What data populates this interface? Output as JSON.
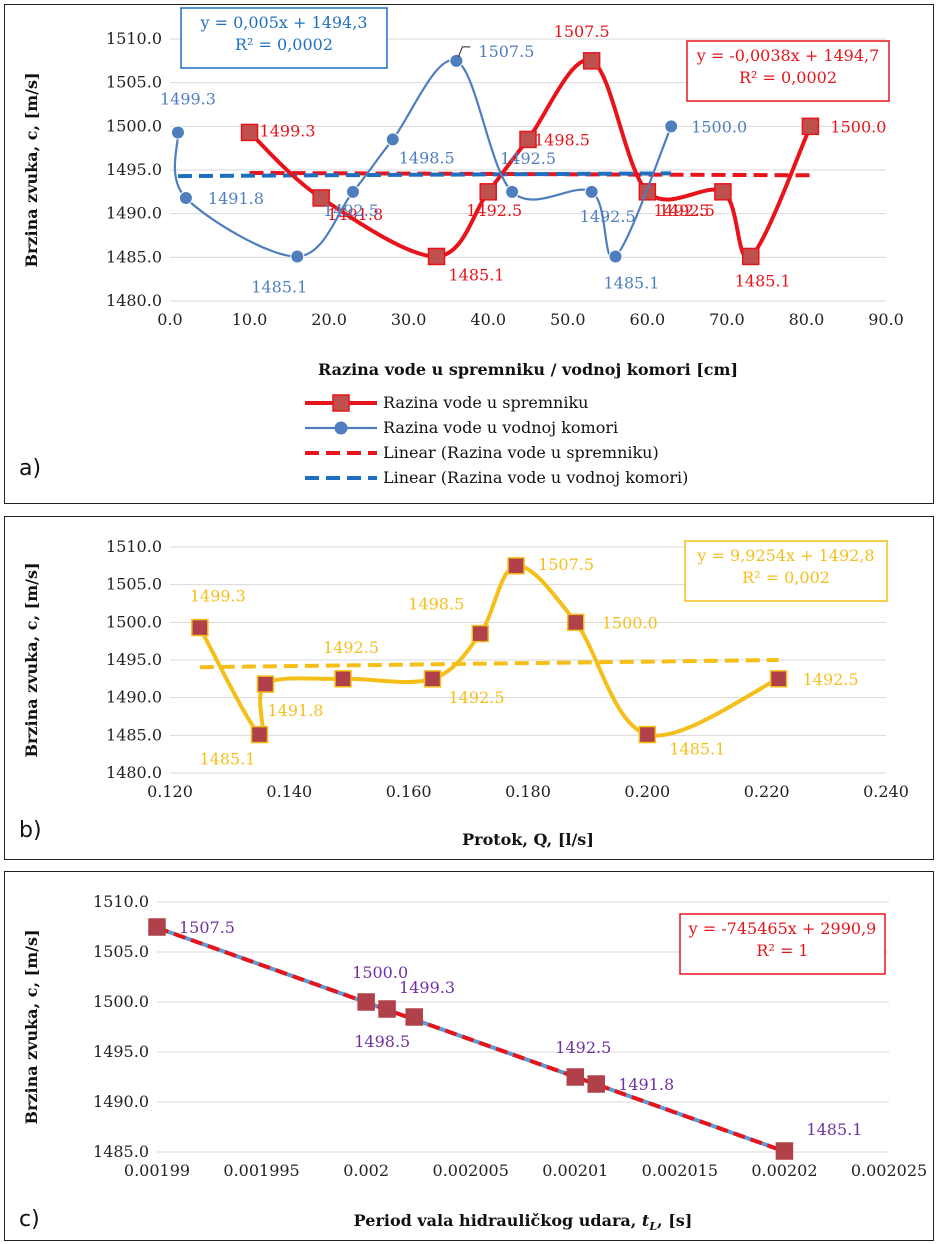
{
  "chart_data": [
    {
      "id": "a",
      "type": "line",
      "panel_label": "a)",
      "xlabel": "Razina vode u spremniku / vodnoj komori [cm]",
      "ylabel": "Brzina zvuka, c, [m/s]",
      "xlim": [
        0,
        90
      ],
      "ylim": [
        1480,
        1510
      ],
      "x_ticks": [
        "0.0",
        "10.0",
        "20.0",
        "30.0",
        "40.0",
        "50.0",
        "60.0",
        "70.0",
        "80.0",
        "90.0"
      ],
      "y_ticks": [
        "1480.0",
        "1485.0",
        "1490.0",
        "1495.0",
        "1500.0",
        "1505.0",
        "1510.0"
      ],
      "grid": true,
      "legend": "bottom",
      "legend_entries": [
        "Razina vode u spremniku",
        "Razina vode u vodnoj komori",
        "Linear (Razina vode u spremniku)",
        "Linear (Razina vode u vodnoj komori)"
      ],
      "series": [
        {
          "name": "Razina vode u spremniku",
          "color": "#e8141b",
          "marker": "square",
          "x": [
            10,
            19,
            33.5,
            40,
            45,
            53,
            60,
            69.5,
            73,
            80.5
          ],
          "y": [
            1499.3,
            1491.8,
            1485.1,
            1492.5,
            1498.5,
            1507.5,
            1492.5,
            1492.5,
            1485.1,
            1500.0
          ],
          "labels": [
            "1499.3",
            "1491.8",
            "1485.1",
            "1492.5",
            "1498.5",
            "1507.5",
            "1492.5",
            "1492.5",
            "1485.1",
            "1500.0"
          ]
        },
        {
          "name": "Razina vode u vodnoj komori",
          "color": "#4f7ebf",
          "marker": "circle",
          "x": [
            1,
            2,
            16,
            23,
            28,
            36,
            43,
            53,
            56,
            63
          ],
          "y": [
            1499.3,
            1491.8,
            1485.1,
            1492.5,
            1498.5,
            1507.5,
            1492.5,
            1492.5,
            1485.1,
            1500.0
          ],
          "labels": [
            "1499.3",
            "1491.8",
            "1485.1",
            "1492.5",
            "1498.5",
            "1507.5",
            "1492.5",
            "1492.5",
            "1485.1",
            "1500.0"
          ]
        }
      ],
      "trendlines": [
        {
          "name": "Linear (Razina vode u spremniku)",
          "color": "#e8141b",
          "equation": "y = -0,0038x + 1494,7",
          "r2": "R² = 0,0002",
          "slope": -0.0038,
          "intercept": 1494.7,
          "x_range": [
            10,
            80.5
          ]
        },
        {
          "name": "Linear (Razina vode u vodnoj komori)",
          "color": "#1f6fc0",
          "equation": "y = 0,005x + 1494,3",
          "r2": "R² = 0,0002",
          "slope": 0.005,
          "intercept": 1494.3,
          "x_range": [
            1,
            63
          ]
        }
      ]
    },
    {
      "id": "b",
      "type": "line",
      "panel_label": "b)",
      "xlabel": "Protok, Q, [l/s]",
      "ylabel": "Brzina zvuka, c, [m/s]",
      "xlim": [
        0.12,
        0.24
      ],
      "ylim": [
        1480,
        1510
      ],
      "x_ticks": [
        "0.120",
        "0.140",
        "0.160",
        "0.180",
        "0.200",
        "0.220",
        "0.240"
      ],
      "y_ticks": [
        "1480.0",
        "1485.0",
        "1490.0",
        "1495.0",
        "1500.0",
        "1505.0",
        "1510.0"
      ],
      "grid": true,
      "series": [
        {
          "name": "",
          "color": "#f5bf1a",
          "marker_color": "#b0414a",
          "marker": "square",
          "x": [
            0.125,
            0.135,
            0.136,
            0.149,
            0.164,
            0.172,
            0.178,
            0.188,
            0.2,
            0.222
          ],
          "y": [
            1499.3,
            1485.1,
            1491.8,
            1492.5,
            1492.5,
            1498.5,
            1507.5,
            1500.0,
            1485.1,
            1492.5
          ],
          "labels": [
            "1499.3",
            "1485.1",
            "1491.8",
            "1492.5",
            "1492.5",
            "1498.5",
            "1507.5",
            "1500.0",
            "1485.1",
            "1492.5"
          ]
        }
      ],
      "trendlines": [
        {
          "color": "#f5bf1a",
          "equation": "y = 9,9254x + 1492,8",
          "r2": "R² = 0,002",
          "slope": 9.9254,
          "intercept": 1492.8,
          "x_range": [
            0.125,
            0.222
          ]
        }
      ]
    },
    {
      "id": "c",
      "type": "scatter",
      "panel_label": "c)",
      "xlabel": "Period vala hidrauličkog udara, tL, [s]",
      "xlabel_main": "Period vala hidrauličkog udara, ",
      "xlabel_var": "t",
      "xlabel_sub": "L",
      "xlabel_tail": ", [s]",
      "ylabel": "Brzina zvuka, c, [m/s]",
      "xlim": [
        0.00199,
        0.002025
      ],
      "ylim": [
        1485,
        1510
      ],
      "x_ticks": [
        "0.00199",
        "0.001995",
        "0.002",
        "0.002005",
        "0.00201",
        "0.002015",
        "0.00202",
        "0.002025"
      ],
      "y_ticks": [
        "1485.0",
        "1490.0",
        "1495.0",
        "1500.0",
        "1505.0",
        "1510.0"
      ],
      "grid": true,
      "series": [
        {
          "name": "",
          "color": "#b0414a",
          "label_color": "#7030a0",
          "marker": "square",
          "x": [
            0.00199,
            0.002,
            0.002001,
            0.0020023,
            0.00201,
            0.002011,
            0.00202
          ],
          "y": [
            1507.5,
            1500.0,
            1499.3,
            1498.5,
            1492.5,
            1491.8,
            1485.1
          ],
          "labels": [
            "1507.5",
            "1500.0",
            "1499.3",
            "1498.5",
            "1492.5",
            "1491.8",
            "1485.1"
          ]
        }
      ],
      "trendlines": [
        {
          "color": "#e8141b",
          "color2": "#5b9bd5",
          "equation": "y = -745465x + 2990,9",
          "r2": "R² = 1",
          "slope": -745465,
          "intercept": 2990.9,
          "x_range": [
            0.00199,
            0.00202
          ]
        }
      ]
    }
  ]
}
